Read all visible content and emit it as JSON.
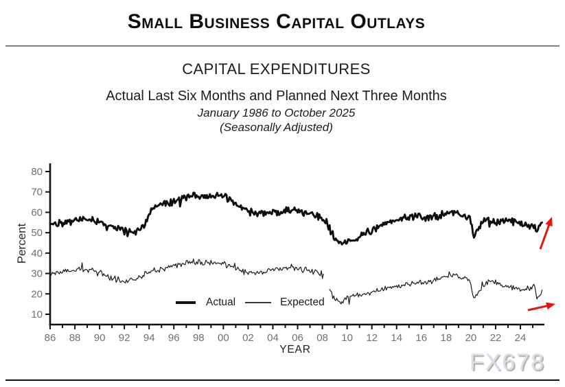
{
  "page": {
    "title": "Small Business Capital Outlays",
    "watermark": "FX678"
  },
  "header": {
    "chart_title": "CAPITAL EXPENDITURES",
    "subtitle": "Actual Last Six Months and Planned Next Three Months",
    "date_range": "January 1986 to October 2025",
    "note": "(Seasonally Adjusted)"
  },
  "chart_data": {
    "type": "line",
    "title": "CAPITAL EXPENDITURES",
    "xlabel": "YEAR",
    "ylabel": "Percent",
    "frequency": "monthly",
    "x_range": [
      1986.0,
      2025.79
    ],
    "ylim": [
      5,
      83.5
    ],
    "grid": false,
    "y_ticks": [
      10,
      20,
      30,
      40,
      50,
      60,
      70,
      80
    ],
    "x_major_ticks": {
      "years": [
        1986,
        1988,
        1990,
        1992,
        1994,
        1996,
        1998,
        2000,
        2002,
        2004,
        2006,
        2008,
        2010,
        2012,
        2014,
        2016,
        2018,
        2020,
        2022,
        2024
      ],
      "labels": [
        "86",
        "88",
        "90",
        "92",
        "94",
        "96",
        "98",
        "00",
        "02",
        "04",
        "06",
        "08",
        "10",
        "12",
        "14",
        "16",
        "18",
        "20",
        "22",
        "24"
      ]
    },
    "x_minor_ticks": {
      "start_year": 1987,
      "end_year": 2025,
      "step": 2
    },
    "legend": {
      "position": "inside-bottom",
      "entries": [
        "Actual",
        "Expected"
      ]
    },
    "series": [
      {
        "name": "Actual",
        "line_width": 2.9,
        "color": "#0d0d0d",
        "noise_amplitude": 2.1,
        "seed": 42,
        "anchors": [
          [
            1986.0,
            54.5
          ],
          [
            1987,
            55
          ],
          [
            1988,
            56
          ],
          [
            1989,
            56.5
          ],
          [
            1990,
            55.5
          ],
          [
            1991,
            52.5
          ],
          [
            1992,
            51
          ],
          [
            1992.8,
            50.5
          ],
          [
            1993.5,
            53
          ],
          [
            1994.2,
            61
          ],
          [
            1995,
            63.5
          ],
          [
            1996,
            65.5
          ],
          [
            1997,
            67.5
          ],
          [
            1997.6,
            68.5
          ],
          [
            1998.5,
            68
          ],
          [
            1999.5,
            68
          ],
          [
            2000.5,
            66.5
          ],
          [
            2001.5,
            62
          ],
          [
            2002.5,
            59.5
          ],
          [
            2003.5,
            59.5
          ],
          [
            2004.5,
            60.5
          ],
          [
            2005.5,
            61
          ],
          [
            2006.5,
            60
          ],
          [
            2007.5,
            58.5
          ],
          [
            2008.3,
            55
          ],
          [
            2009.0,
            47
          ],
          [
            2009.6,
            44.5
          ],
          [
            2010.2,
            45
          ],
          [
            2010.8,
            47.5
          ],
          [
            2011.5,
            50
          ],
          [
            2012.5,
            52.5
          ],
          [
            2013.5,
            55.5
          ],
          [
            2014.5,
            57
          ],
          [
            2015.5,
            58
          ],
          [
            2016.5,
            57
          ],
          [
            2017.5,
            58.5
          ],
          [
            2018.3,
            60.5
          ],
          [
            2019.2,
            59
          ],
          [
            2019.9,
            57.5
          ],
          [
            2020.25,
            47.5
          ],
          [
            2020.6,
            52
          ],
          [
            2021.2,
            57
          ],
          [
            2022,
            55.5
          ],
          [
            2023,
            56
          ],
          [
            2024,
            54.5
          ],
          [
            2024.8,
            53.5
          ],
          [
            2025.1,
            53.5
          ],
          [
            2025.35,
            50.5
          ],
          [
            2025.6,
            54
          ],
          [
            2025.79,
            56.5
          ]
        ]
      },
      {
        "name": "Expected",
        "line_width": 1.2,
        "color": "#1a1a1a",
        "noise_amplitude": 1.7,
        "seed": 1986,
        "gaps": [
          [
            2008.09,
            2008.57
          ]
        ],
        "anchors": [
          [
            1986.0,
            29.5
          ],
          [
            1987,
            30.5
          ],
          [
            1988,
            31.5
          ],
          [
            1989,
            32
          ],
          [
            1990,
            30
          ],
          [
            1991,
            27.5
          ],
          [
            1992,
            26.5
          ],
          [
            1993,
            28
          ],
          [
            1994,
            30.5
          ],
          [
            1995,
            32.5
          ],
          [
            1996,
            33.5
          ],
          [
            1997,
            35
          ],
          [
            1997.7,
            36
          ],
          [
            1998.5,
            35.5
          ],
          [
            1999.5,
            35
          ],
          [
            2000.5,
            34
          ],
          [
            2001.5,
            31.5
          ],
          [
            2002.5,
            30
          ],
          [
            2003.5,
            31
          ],
          [
            2004.5,
            32.5
          ],
          [
            2005.5,
            33
          ],
          [
            2006.5,
            32
          ],
          [
            2007.5,
            30.5
          ],
          [
            2008.08,
            28.5
          ],
          [
            2008.58,
            22.5
          ],
          [
            2008.9,
            17.5
          ],
          [
            2009.3,
            15.5
          ],
          [
            2009.8,
            17
          ],
          [
            2010.5,
            19
          ],
          [
            2011.5,
            20.5
          ],
          [
            2012.5,
            21.5
          ],
          [
            2013.5,
            23.5
          ],
          [
            2014.5,
            24.5
          ],
          [
            2015.5,
            25.5
          ],
          [
            2016.5,
            26
          ],
          [
            2017.5,
            27.5
          ],
          [
            2018.3,
            29.5
          ],
          [
            2019.2,
            28
          ],
          [
            2019.9,
            26
          ],
          [
            2020.3,
            17.5
          ],
          [
            2020.8,
            22.5
          ],
          [
            2021.5,
            27
          ],
          [
            2022.3,
            25.5
          ],
          [
            2023.2,
            23.5
          ],
          [
            2024.2,
            22
          ],
          [
            2024.9,
            23
          ],
          [
            2025.1,
            26
          ],
          [
            2025.3,
            18
          ],
          [
            2025.55,
            19
          ],
          [
            2025.79,
            21
          ]
        ]
      }
    ],
    "annotations": {
      "arrow_color": "#e8120e",
      "arrows": [
        {
          "from": [
            787,
            363
          ],
          "to": [
            804,
            316
          ],
          "meaning": "actual-series-pointing-up"
        },
        {
          "from": [
            769,
            452
          ],
          "to": [
            809,
            443
          ],
          "meaning": "expected-series-pointing-right"
        }
      ]
    }
  }
}
